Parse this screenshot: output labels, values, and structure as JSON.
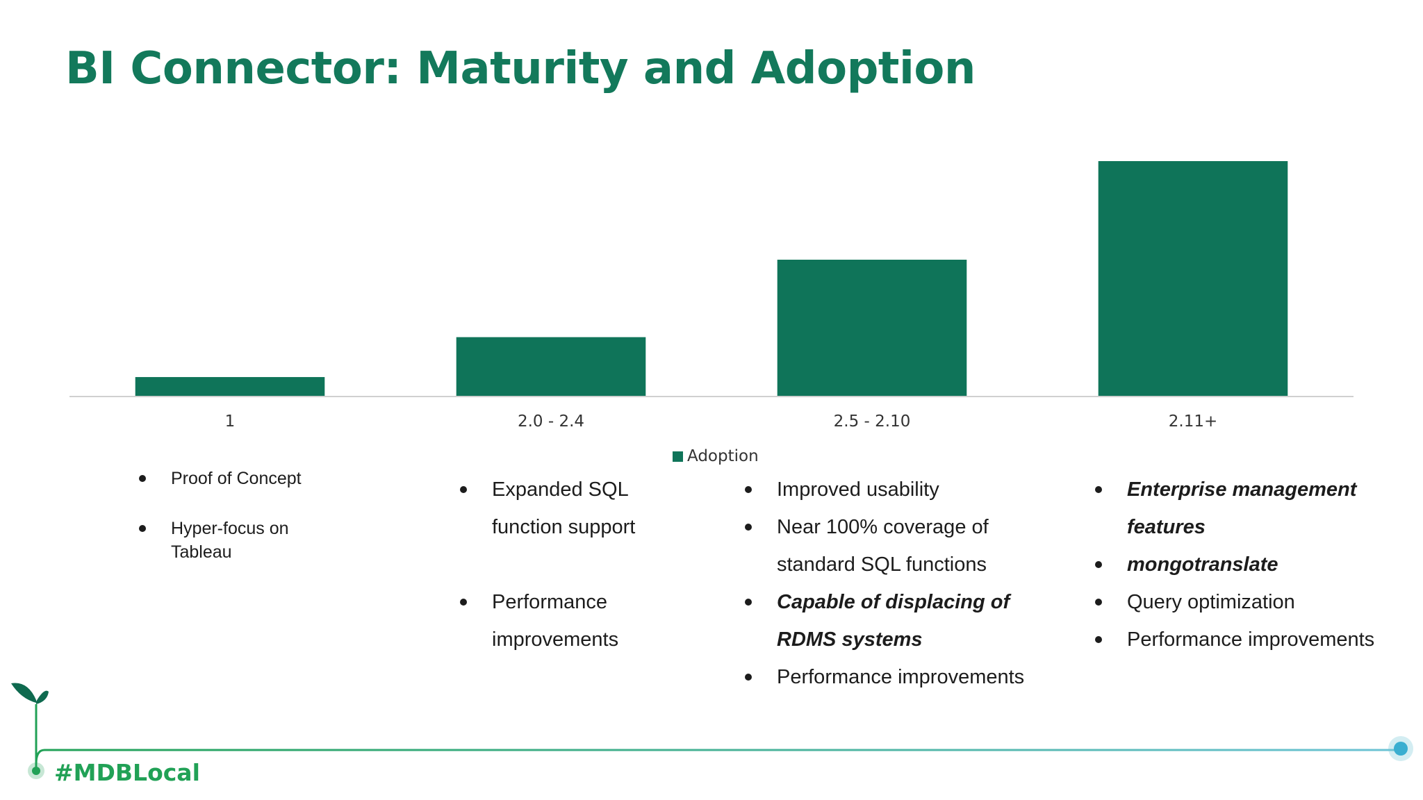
{
  "slide": {
    "title": "BI Connector: Maturity and Adoption",
    "hashtag": "#MDBLocal"
  },
  "chart_data": {
    "type": "bar",
    "title": "",
    "xlabel": "",
    "ylabel": "",
    "categories": [
      "1",
      "2.0 - 2.4",
      "2.5 - 2.10",
      "2.11+"
    ],
    "series": [
      {
        "name": "Adoption",
        "values": [
          8,
          25,
          58,
          100
        ]
      }
    ],
    "ylim": [
      0,
      100
    ],
    "grid": false,
    "legend": "bottom-center",
    "colors": {
      "bar": "#0f7459",
      "axis": "#d0d0d0"
    }
  },
  "columns": [
    {
      "items": [
        {
          "text": "Proof of Concept",
          "emphasis": false
        },
        {
          "text": "Hyper-focus on Tableau",
          "emphasis": false
        }
      ]
    },
    {
      "items": [
        {
          "text": "Expanded SQL function support",
          "emphasis": false
        },
        {
          "text": "Performance improvements",
          "emphasis": false
        }
      ]
    },
    {
      "items": [
        {
          "text": "Improved usability",
          "emphasis": false
        },
        {
          "text": "Near 100% coverage of standard SQL functions",
          "emphasis": false
        },
        {
          "text": "Capable of displacing of RDMS systems",
          "emphasis": true
        },
        {
          "text": "Performance improvements",
          "emphasis": false
        }
      ]
    },
    {
      "items": [
        {
          "text": "Enterprise management features",
          "emphasis": true
        },
        {
          "text": "mongotranslate",
          "emphasis": true
        },
        {
          "text": "Query optimization",
          "emphasis": false
        },
        {
          "text": "Performance improvements",
          "emphasis": false
        }
      ]
    }
  ],
  "colors": {
    "title": "#13795b",
    "hashtag": "#21a156",
    "footer_line_start": "#21a156",
    "footer_line_end": "#6cc3d5",
    "leaf": "#0f6a4f"
  },
  "icons": {
    "logo": "sprout-icon",
    "end_marker": "circle-dot-icon"
  }
}
